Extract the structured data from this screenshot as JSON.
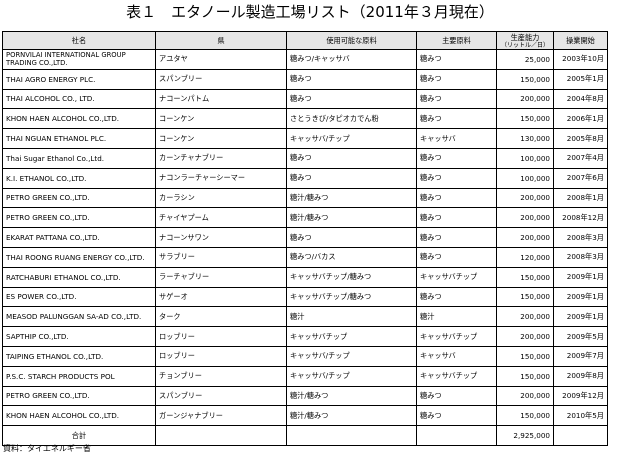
{
  "title": "表１　エタノール製造工場リスト（2011年３月現在）",
  "table": {
    "headers": {
      "company": "社名",
      "province": "県",
      "raw_usable": "使用可能な原料",
      "raw_main": "主要原料",
      "capacity": "生産能力",
      "capacity_unit": "（リットル／日）",
      "start": "操業開始"
    },
    "rows": [
      {
        "company": "PORNVILAI INTERNATIONAL GROUP TRADING CO.,LTD.",
        "province": "アユタヤ",
        "raw_usable": "糖みつ/キャッサバ",
        "raw_main": "糖みつ",
        "capacity": "25,000",
        "start": "2003年10月"
      },
      {
        "company": "THAI AGRO ENERGY PLC.",
        "province": "スパンブリー",
        "raw_usable": "糖みつ",
        "raw_main": "糖みつ",
        "capacity": "150,000",
        "start": "2005年1月"
      },
      {
        "company": "THAI ALCOHOL CO., LTD.",
        "province": "ナコーンパトム",
        "raw_usable": "糖みつ",
        "raw_main": "糖みつ",
        "capacity": "200,000",
        "start": "2004年8月"
      },
      {
        "company": "KHON HAEN ALCOHOL CO.,LTD.",
        "province": "コーンケン",
        "raw_usable": "さとうきび/タピオカでん粉",
        "raw_main": "糖みつ",
        "capacity": "150,000",
        "start": "2006年1月"
      },
      {
        "company": "THAI NGUAN ETHANOL PLC.",
        "province": "コーンケン",
        "raw_usable": "キャッサバ/チップ",
        "raw_main": "キャッサバ",
        "capacity": "130,000",
        "start": "2005年8月"
      },
      {
        "company": "Thai Sugar Ethanol Co.,Ltd.",
        "province": "カーンチャナブリー",
        "raw_usable": "糖みつ",
        "raw_main": "糖みつ",
        "capacity": "100,000",
        "start": "2007年4月"
      },
      {
        "company": "K.I.  ETHANOL CO.,LTD.",
        "province": "ナコンラーチャーシーマー",
        "raw_usable": "糖みつ",
        "raw_main": "糖みつ",
        "capacity": "100,000",
        "start": "2007年6月"
      },
      {
        "company": "PETRO GREEN CO.,LTD.",
        "province": "カーラシン",
        "raw_usable": "糖汁/糖みつ",
        "raw_main": "糖みつ",
        "capacity": "200,000",
        "start": "2008年1月"
      },
      {
        "company": "PETRO GREEN CO.,LTD.",
        "province": "チャイヤプーム",
        "raw_usable": "糖汁/糖みつ",
        "raw_main": "糖みつ",
        "capacity": "200,000",
        "start": "2008年12月"
      },
      {
        "company": "EKARAT PATTANA CO.,LTD.",
        "province": "ナコーンサワン",
        "raw_usable": "糖みつ",
        "raw_main": "糖みつ",
        "capacity": "200,000",
        "start": "2008年3月"
      },
      {
        "company": "THAI ROONG RUANG ENERGY CO.,LTD.",
        "province": "サラブリー",
        "raw_usable": "糖みつ/バカス",
        "raw_main": "糖みつ",
        "capacity": "120,000",
        "start": "2008年3月"
      },
      {
        "company": "RATCHABURI ETHANOL CO.,LTD.",
        "province": "ラーチャブリー",
        "raw_usable": "キャッサバチップ/糖みつ",
        "raw_main": "キャッサバチップ",
        "capacity": "150,000",
        "start": "2009年1月"
      },
      {
        "company": "ES POWER CO.,LTD.",
        "province": "サゲーオ",
        "raw_usable": "キャッサバチップ/糖みつ",
        "raw_main": "糖みつ",
        "capacity": "150,000",
        "start": "2009年1月"
      },
      {
        "company": "MEASOD PALUNGGAN SA-AD CO.,LTD.",
        "province": "ターク",
        "raw_usable": "糖汁",
        "raw_main": "糖汁",
        "capacity": "200,000",
        "start": "2009年1月"
      },
      {
        "company": "SAPTHIP CO.,LTD.",
        "province": "ロッブリー",
        "raw_usable": "キャッサバチップ",
        "raw_main": "キャッサバチップ",
        "capacity": "200,000",
        "start": "2009年5月"
      },
      {
        "company": "TAIPING ETHANOL CO.,LTD.",
        "province": "ロッブリー",
        "raw_usable": "キャッサバ/チップ",
        "raw_main": "キャッサバ",
        "capacity": "150,000",
        "start": "2009年7月"
      },
      {
        "company": "P.S.C. STARCH PRODUCTS POL",
        "province": "チョンブリー",
        "raw_usable": "キャッサバ/チップ",
        "raw_main": "キャッサバチップ",
        "capacity": "150,000",
        "start": "2009年8月"
      },
      {
        "company": "PETRO GREEN CO.,LTD.",
        "province": "スパンブリー",
        "raw_usable": "糖汁/糖みつ",
        "raw_main": "糖みつ",
        "capacity": "200,000",
        "start": "2009年12月"
      },
      {
        "company": "KHON HAEN ALCOHOL CO.,LTD.",
        "province": "ガーンジャナブリー",
        "raw_usable": "糖汁/糖みつ",
        "raw_main": "糖みつ",
        "capacity": "150,000",
        "start": "2010年5月"
      }
    ],
    "total": {
      "label": "合計",
      "capacity": "2,925,000"
    }
  },
  "source": "資料：タイエネルギー省"
}
